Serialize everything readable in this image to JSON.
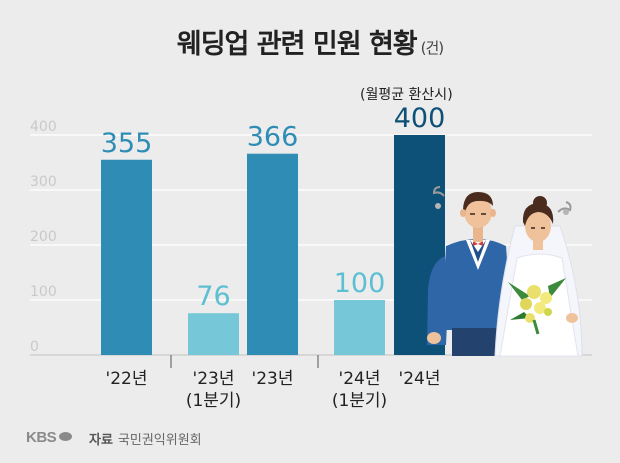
{
  "header": {
    "title": "웨딩업 관련 민원 현황",
    "unit": "(건)"
  },
  "note": "(월평균 환산시)",
  "source": {
    "label": "자료",
    "text": "국민권익위원회"
  },
  "logo": "KBS",
  "colors": {
    "bar_annual": "#2f8db5",
    "bar_quarter": "#76c8d8",
    "bar_highlight": "#0d5078",
    "value_annual": "#2f8db5",
    "value_quarter": "#5cbfd2",
    "value_highlight": "#0d5078",
    "grid": "#ffffff",
    "tick": "#c9c9c9"
  },
  "chart_data": {
    "type": "bar",
    "ylim": [
      0,
      400
    ],
    "yticks": [
      0,
      100,
      200,
      300,
      400
    ],
    "grid": true,
    "categories": [
      "'22년",
      "'23년 (1분기)",
      "'23년",
      "'24년 (1분기)",
      "'24년"
    ],
    "values": [
      355,
      76,
      366,
      100,
      400
    ],
    "bars": [
      {
        "label_line1": "'22년",
        "label_line2": "",
        "value": 355,
        "kind": "annual"
      },
      {
        "label_line1": "'23년",
        "label_line2": "(1분기)",
        "value": 76,
        "kind": "quarter"
      },
      {
        "label_line1": "'23년",
        "label_line2": "",
        "value": 366,
        "kind": "annual"
      },
      {
        "label_line1": "'24년",
        "label_line2": "(1분기)",
        "value": 100,
        "kind": "quarter"
      },
      {
        "label_line1": "'24년",
        "label_line2": "",
        "value": 400,
        "kind": "highlight"
      }
    ]
  }
}
